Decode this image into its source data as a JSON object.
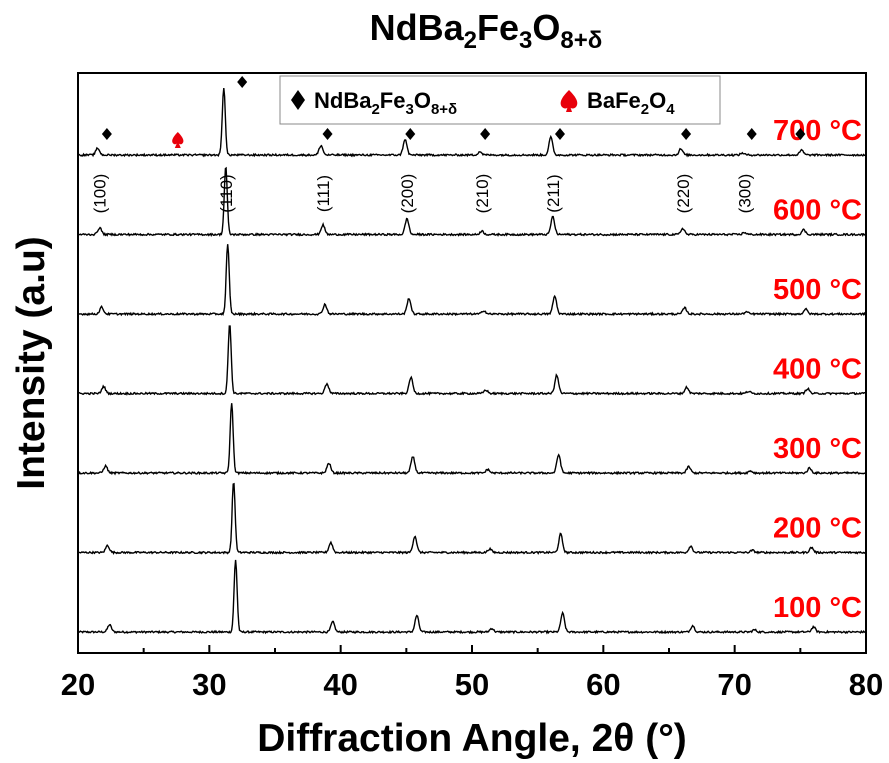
{
  "title": {
    "main": "NdBa",
    "s1": "2",
    "mid1": "Fe",
    "s2": "3",
    "mid2": "O",
    "s3": "8+δ"
  },
  "chart_data": {
    "type": "line",
    "xlabel": "Diffraction Angle, 2θ (°)",
    "ylabel": "Intensity (a.u)",
    "xlim": [
      20,
      80
    ],
    "xticks": [
      "20",
      "30",
      "40",
      "50",
      "60",
      "70",
      "80"
    ],
    "series": [
      {
        "name": "100 °C",
        "label_color": "#ff0000"
      },
      {
        "name": "200 °C",
        "label_color": "#ff0000"
      },
      {
        "name": "300 °C",
        "label_color": "#ff0000"
      },
      {
        "name": "400 °C",
        "label_color": "#ff0000"
      },
      {
        "name": "500 °C",
        "label_color": "#ff0000"
      },
      {
        "name": "600 °C",
        "label_color": "#ff0000"
      },
      {
        "name": "700 °C",
        "label_color": "#ff0000"
      }
    ],
    "peaks": [
      {
        "two_theta": 22.4,
        "hkl": "(100)",
        "intensity": 0.1
      },
      {
        "two_theta": 32.0,
        "hkl": "(110)",
        "intensity": 1.0
      },
      {
        "two_theta": 39.4,
        "hkl": "(111)",
        "intensity": 0.14
      },
      {
        "two_theta": 45.8,
        "hkl": "(200)",
        "intensity": 0.23
      },
      {
        "two_theta": 51.5,
        "hkl": "(210)",
        "intensity": 0.05
      },
      {
        "two_theta": 56.9,
        "hkl": "(211)",
        "intensity": 0.26
      },
      {
        "two_theta": 66.8,
        "hkl": "(220)",
        "intensity": 0.09
      },
      {
        "two_theta": 71.5,
        "hkl": "(300)",
        "intensity": 0.03
      },
      {
        "two_theta": 76.0,
        "hkl": "",
        "intensity": 0.07
      }
    ],
    "peak_shift_per_series": -0.15,
    "legend": {
      "placement": "top",
      "entries": [
        {
          "marker": "diamond",
          "color": "#000000",
          "main": "NdBa",
          "s1": "2",
          "mid1": "Fe",
          "s2": "3",
          "mid2": "O",
          "s3": "8+δ"
        },
        {
          "marker": "spade",
          "color": "#e8000b",
          "main": "BaFe",
          "s1": "2",
          "mid1": "O",
          "s2": "4"
        }
      ]
    },
    "markers_700": {
      "diamond_two_theta": [
        22.2,
        32.5,
        39.0,
        45.3,
        51.0,
        56.7,
        66.3,
        71.3,
        75.0
      ],
      "spade_two_theta": [
        27.6
      ]
    }
  }
}
